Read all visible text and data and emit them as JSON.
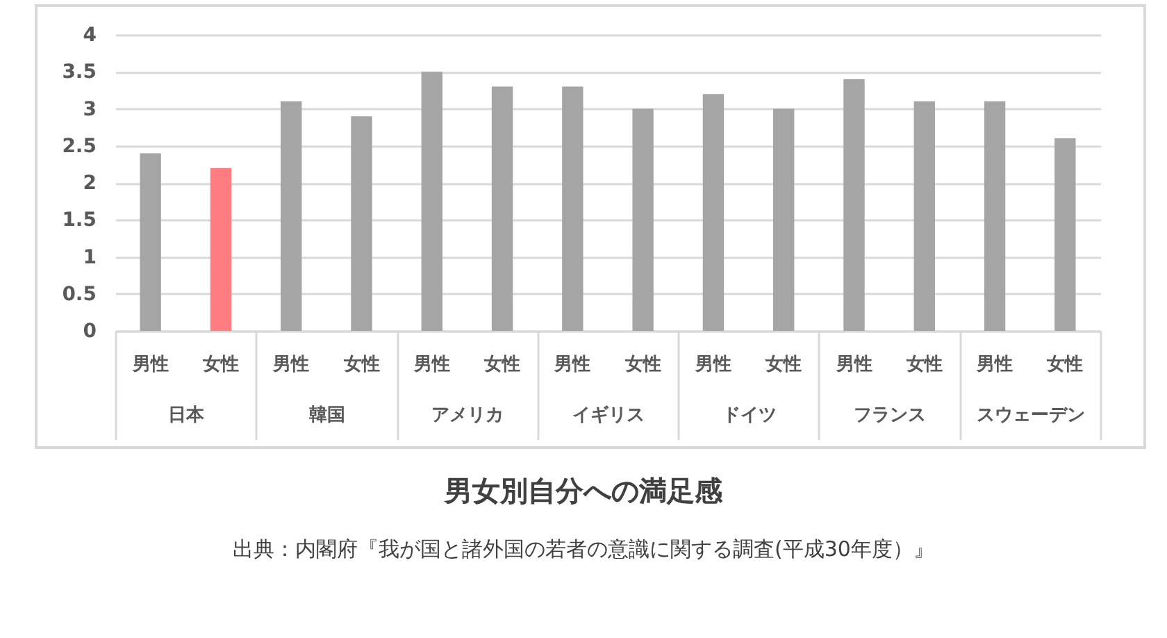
{
  "chart_data": {
    "type": "bar",
    "title": "男女別自分への満足感",
    "annotations": [
      "出典：内閣府『我が国と諸外国の若者の意識に関する調査(平成30年度）』"
    ],
    "categories": [
      "日本",
      "韓国",
      "アメリカ",
      "イギリス",
      "ドイツ",
      "フランス",
      "スウェーデン"
    ],
    "series": [
      {
        "name": "男性",
        "color": "#a5a5a5",
        "values": [
          2.4,
          3.1,
          3.5,
          3.3,
          3.2,
          3.4,
          3.1
        ]
      },
      {
        "name": "女性",
        "colors": [
          "#ff7c80",
          "#a5a5a5",
          "#a5a5a5",
          "#a5a5a5",
          "#a5a5a5",
          "#a5a5a5",
          "#a5a5a5"
        ],
        "values": [
          2.2,
          2.9,
          3.3,
          3.0,
          3.0,
          3.1,
          2.6
        ]
      }
    ],
    "ylim": [
      0,
      4
    ],
    "yticks": [
      0,
      0.5,
      1,
      1.5,
      2,
      2.5,
      3,
      3.5,
      4
    ],
    "grid": "y"
  }
}
